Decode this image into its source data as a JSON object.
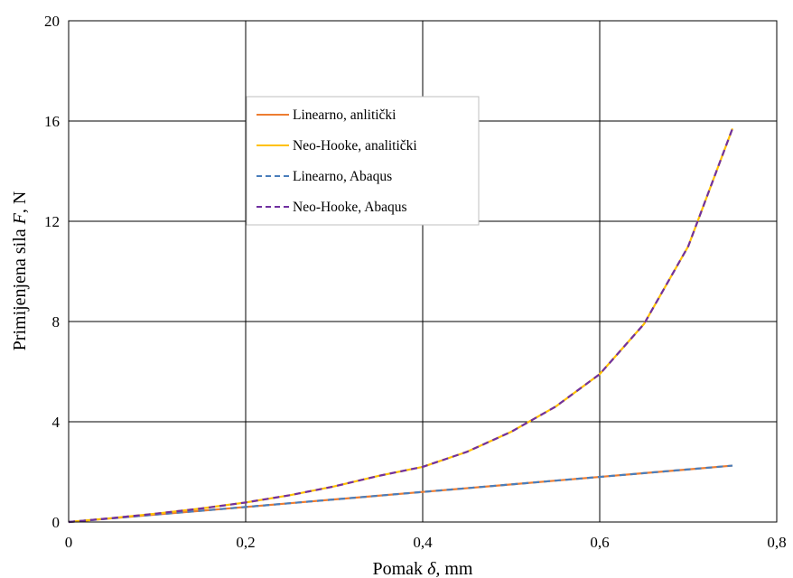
{
  "chart_data": {
    "type": "line",
    "title": "",
    "xlabel": {
      "prefix": "Pomak ",
      "symbol": "δ,",
      "suffix": " mm"
    },
    "ylabel": {
      "prefix": "Primijenjena sila ",
      "symbol": "F",
      "suffix": ", N"
    },
    "xlim": [
      0,
      0.8
    ],
    "ylim": [
      0,
      20
    ],
    "xticks": [
      0,
      0.2,
      0.4,
      0.6,
      0.8
    ],
    "xtick_labels": [
      "0",
      "0,2",
      "0,4",
      "0,6",
      "0,8"
    ],
    "yticks": [
      0,
      4,
      8,
      12,
      16,
      20
    ],
    "ytick_labels": [
      "0",
      "4",
      "8",
      "12",
      "16",
      "20"
    ],
    "grid": true,
    "legend_position": "upper-middle",
    "series": [
      {
        "name": "Linearno, anlitički",
        "color": "#ED7D31",
        "dash": "solid",
        "x": [
          0,
          0.05,
          0.1,
          0.15,
          0.2,
          0.25,
          0.3,
          0.35,
          0.4,
          0.45,
          0.5,
          0.55,
          0.6,
          0.65,
          0.7,
          0.75
        ],
        "y": [
          0,
          0.15,
          0.3,
          0.45,
          0.6,
          0.75,
          0.9,
          1.05,
          1.2,
          1.35,
          1.5,
          1.65,
          1.8,
          1.95,
          2.1,
          2.25
        ]
      },
      {
        "name": "Neo-Hooke, analitički",
        "color": "#FFC000",
        "dash": "solid",
        "x": [
          0,
          0.05,
          0.1,
          0.15,
          0.2,
          0.25,
          0.3,
          0.35,
          0.4,
          0.45,
          0.5,
          0.55,
          0.6,
          0.65,
          0.7,
          0.75
        ],
        "y": [
          0,
          0.16,
          0.34,
          0.54,
          0.78,
          1.07,
          1.42,
          1.84,
          2.2,
          2.8,
          3.6,
          4.6,
          5.9,
          7.9,
          11.0,
          15.7
        ]
      },
      {
        "name": "Linearno, Abaqus",
        "color": "#4A7EBB",
        "dash": "dashed",
        "x": [
          0,
          0.05,
          0.1,
          0.15,
          0.2,
          0.25,
          0.3,
          0.35,
          0.4,
          0.45,
          0.5,
          0.55,
          0.6,
          0.65,
          0.7,
          0.75
        ],
        "y": [
          0,
          0.15,
          0.3,
          0.45,
          0.6,
          0.75,
          0.9,
          1.05,
          1.2,
          1.35,
          1.5,
          1.65,
          1.8,
          1.95,
          2.1,
          2.25
        ]
      },
      {
        "name": "Neo-Hooke, Abaqus",
        "color": "#7030A0",
        "dash": "dashed",
        "x": [
          0,
          0.05,
          0.1,
          0.15,
          0.2,
          0.25,
          0.3,
          0.35,
          0.4,
          0.45,
          0.5,
          0.55,
          0.6,
          0.65,
          0.7,
          0.75
        ],
        "y": [
          0,
          0.16,
          0.34,
          0.54,
          0.78,
          1.07,
          1.42,
          1.84,
          2.2,
          2.8,
          3.6,
          4.6,
          5.9,
          7.9,
          11.0,
          15.7
        ]
      }
    ]
  }
}
